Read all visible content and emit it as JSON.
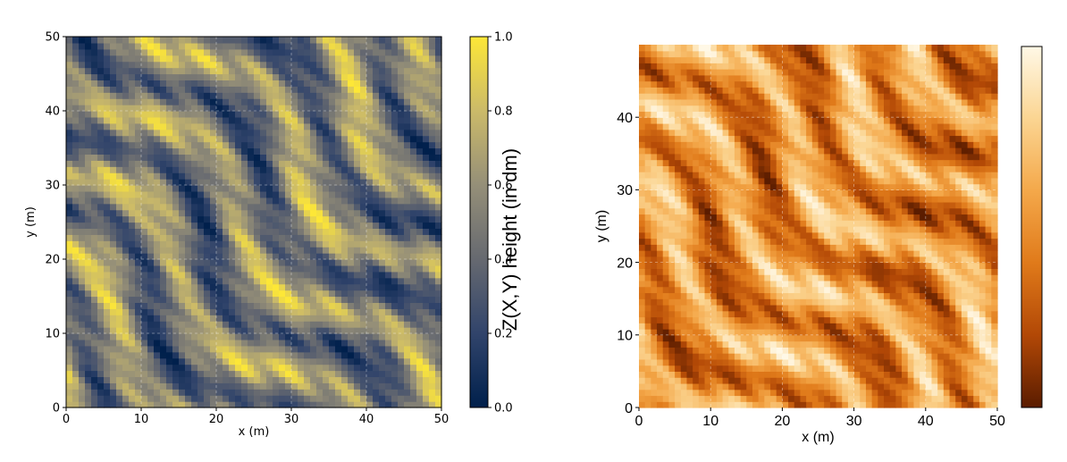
{
  "chart_data": [
    {
      "type": "heatmap",
      "title": "",
      "xlabel": "x (m)",
      "ylabel": "y (m)",
      "xlim": [
        0,
        50
      ],
      "ylim": [
        0,
        50
      ],
      "x_ticks": [
        "0",
        "10",
        "20",
        "30",
        "40",
        "50"
      ],
      "y_ticks": [
        "0",
        "10",
        "20",
        "30",
        "40",
        "50"
      ],
      "grid": true,
      "colormap": "cividis",
      "colormap_colors": [
        "#00204c",
        "#31446b",
        "#666970",
        "#958f78",
        "#cbba69",
        "#fde737"
      ],
      "colorbar": {
        "label": "Z(X,Y) height (in dm)",
        "range": [
          0,
          1
        ],
        "ticks": [
          "0.0",
          "0.2",
          "0.4",
          "0.6",
          "0.8",
          "1.0"
        ]
      },
      "pattern": "diagonal random ridges oriented lower-left to upper-right"
    },
    {
      "type": "heatmap",
      "title": "",
      "xlabel": "x (m)",
      "ylabel": "y (m)",
      "xlim": [
        0,
        50
      ],
      "ylim": [
        0,
        50
      ],
      "x_ticks": [
        "0",
        "10",
        "20",
        "30",
        "40",
        "50"
      ],
      "y_ticks": [
        "0",
        "10",
        "20",
        "30",
        "40"
      ],
      "grid": true,
      "colormap": "orange",
      "colormap_colors": [
        "#5a1c00",
        "#b24806",
        "#e07a1a",
        "#f4a84a",
        "#fbd592",
        "#fff8e6"
      ],
      "colorbar": {
        "label": "",
        "ticks": []
      },
      "pattern": "diagonal random ridges oriented lower-left to upper-right"
    }
  ]
}
